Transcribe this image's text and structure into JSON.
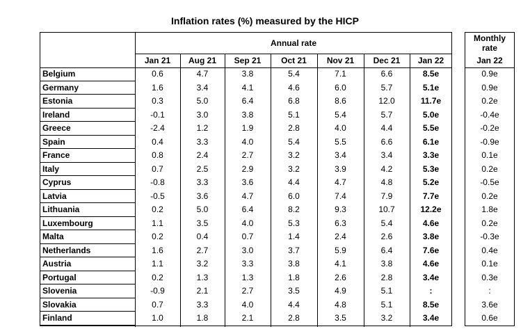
{
  "title": "Inflation rates (%) measured by the HICP",
  "table": {
    "group_header": "Annual rate",
    "columns": [
      "Jan 21",
      "Aug 21",
      "Sep 21",
      "Oct 21",
      "Nov 21",
      "Dec 21",
      "Jan 22"
    ],
    "rows": [
      [
        "Belgium",
        "0.6",
        "4.7",
        "3.8",
        "5.4",
        "7.1",
        "6.6",
        "8.5e"
      ],
      [
        "Germany",
        "1.6",
        "3.4",
        "4.1",
        "4.6",
        "6.0",
        "5.7",
        "5.1e"
      ],
      [
        "Estonia",
        "0.3",
        "5.0",
        "6.4",
        "6.8",
        "8.6",
        "12.0",
        "11.7e"
      ],
      [
        "Ireland",
        "-0.1",
        "3.0",
        "3.8",
        "5.1",
        "5.4",
        "5.7",
        "5.0e"
      ],
      [
        "Greece",
        "-2.4",
        "1.2",
        "1.9",
        "2.8",
        "4.0",
        "4.4",
        "5.5e"
      ],
      [
        "Spain",
        "0.4",
        "3.3",
        "4.0",
        "5.4",
        "5.5",
        "6.6",
        "6.1e"
      ],
      [
        "France",
        "0.8",
        "2.4",
        "2.7",
        "3.2",
        "3.4",
        "3.4",
        "3.3e"
      ],
      [
        "Italy",
        "0.7",
        "2.5",
        "2.9",
        "3.2",
        "3.9",
        "4.2",
        "5.3e"
      ],
      [
        "Cyprus",
        "-0.8",
        "3.3",
        "3.6",
        "4.4",
        "4.7",
        "4.8",
        "5.2e"
      ],
      [
        "Latvia",
        "-0.5",
        "3.6",
        "4.7",
        "6.0",
        "7.4",
        "7.9",
        "7.7e"
      ],
      [
        "Lithuania",
        "0.2",
        "5.0",
        "6.4",
        "8.2",
        "9.3",
        "10.7",
        "12.2e"
      ],
      [
        "Luxembourg",
        "1.1",
        "3.5",
        "4.0",
        "5.3",
        "6.3",
        "5.4",
        "4.6e"
      ],
      [
        "Malta",
        "0.2",
        "0.4",
        "0.7",
        "1.4",
        "2.4",
        "2.6",
        "3.8e"
      ],
      [
        "Netherlands",
        "1.6",
        "2.7",
        "3.0",
        "3.7",
        "5.9",
        "6.4",
        "7.6e"
      ],
      [
        "Austria",
        "1.1",
        "3.2",
        "3.3",
        "3.8",
        "4.1",
        "3.8",
        "4.6e"
      ],
      [
        "Portugal",
        "0.2",
        "1.3",
        "1.3",
        "1.8",
        "2.6",
        "2.8",
        "3.4e"
      ],
      [
        "Slovenia",
        "-0.9",
        "2.1",
        "2.7",
        "3.5",
        "4.9",
        "5.1",
        ":"
      ],
      [
        "Slovakia",
        "0.7",
        "3.3",
        "4.0",
        "4.4",
        "4.8",
        "5.1",
        "8.5e"
      ],
      [
        "Finland",
        "1.0",
        "1.8",
        "2.1",
        "2.8",
        "3.5",
        "3.2",
        "3.4e"
      ]
    ]
  },
  "monthly": {
    "header_lines": [
      "Monthly",
      "rate"
    ],
    "column": "Jan 22",
    "values": [
      "0.9e",
      "0.9e",
      "0.2e",
      "-0.4e",
      "-0.2e",
      "-0.9e",
      "0.1e",
      "0.2e",
      "-0.5e",
      "0.2e",
      "1.8e",
      "0.2e",
      "-0.3e",
      "0.4e",
      "0.1e",
      "0.3e",
      ":",
      "3.6e",
      "0.6e"
    ]
  }
}
